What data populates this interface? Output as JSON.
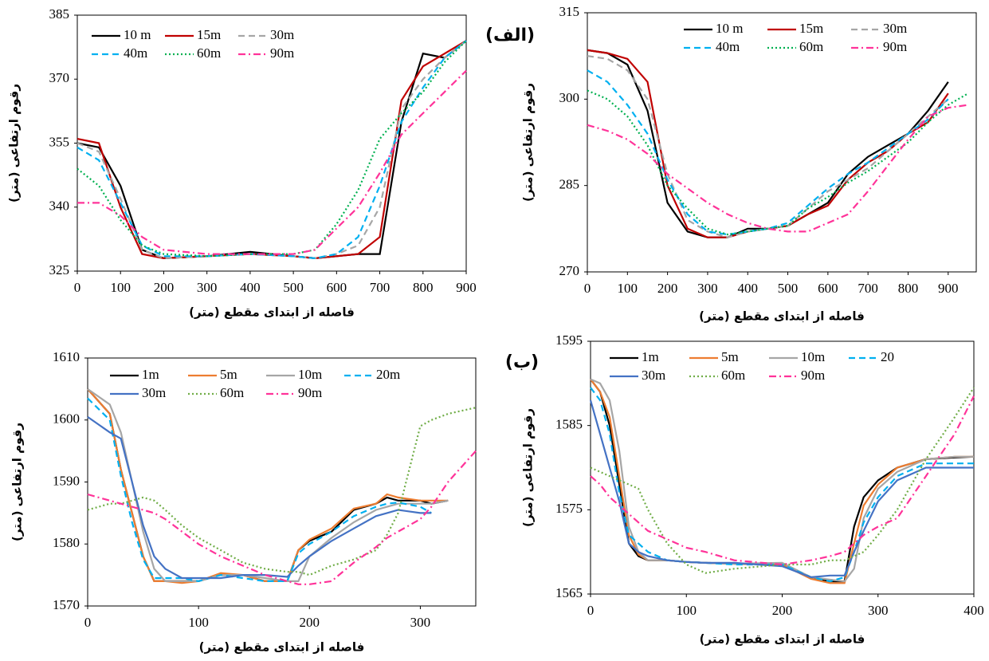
{
  "chart_data": [
    {
      "type": "line",
      "annotation": "(الف)",
      "x_label": "فاصله از ابتدای مقطع (متر)",
      "y_label": "رقوم ارتفاعی (متر)",
      "xlim": [
        0,
        900
      ],
      "xticks": [
        0,
        100,
        200,
        300,
        400,
        500,
        600,
        700,
        800,
        900
      ],
      "ylim": [
        325,
        385
      ],
      "yticks": [
        325,
        340,
        355,
        370,
        385
      ],
      "x": [
        0,
        50,
        100,
        150,
        200,
        300,
        400,
        500,
        550,
        600,
        650,
        700,
        750,
        800,
        850,
        900
      ],
      "series": [
        {
          "name": "10 m",
          "color": "#000000",
          "dash": "solid",
          "values": [
            355,
            354,
            345,
            330,
            328,
            328.5,
            329.5,
            328.5,
            328,
            328.5,
            329,
            329,
            360,
            376,
            375,
            379
          ]
        },
        {
          "name": "15m",
          "color": "#c00000",
          "dash": "solid",
          "values": [
            356,
            355,
            340,
            329,
            328,
            328.5,
            329,
            328.5,
            328,
            328.5,
            329,
            333,
            365,
            373,
            376,
            379
          ]
        },
        {
          "name": "30m",
          "color": "#a6a6a6",
          "dash": "dashed",
          "values": [
            355,
            353,
            342,
            330,
            328,
            328.5,
            329,
            328.5,
            328,
            329,
            331,
            340,
            363,
            370,
            375,
            379
          ]
        },
        {
          "name": "40m",
          "color": "#00b0f0",
          "dash": "dashed",
          "values": [
            354,
            351,
            341,
            331,
            328.5,
            328.5,
            329,
            328.5,
            328,
            329,
            333,
            345,
            360,
            368,
            375,
            379
          ]
        },
        {
          "name": "60m",
          "color": "#00b050",
          "dash": "dotted",
          "values": [
            349,
            345,
            337,
            331,
            329,
            328.5,
            329,
            329,
            330,
            336,
            344,
            356,
            362,
            367,
            374,
            379
          ]
        },
        {
          "name": "90m",
          "color": "#ff3399",
          "dash": "dashdot",
          "values": [
            341,
            341,
            338,
            333,
            330,
            329,
            329,
            329,
            330,
            335,
            340,
            348,
            357,
            362,
            367,
            372
          ]
        }
      ]
    },
    {
      "type": "line",
      "x_label": "فاصله از ابتدای مقطع (متر)",
      "y_label": "رقوم ارتفاعی (متر)",
      "xlim": [
        0,
        970
      ],
      "xticks": [
        0,
        100,
        200,
        300,
        400,
        500,
        600,
        700,
        800,
        900
      ],
      "ylim": [
        270,
        315
      ],
      "yticks": [
        270,
        285,
        300,
        315
      ],
      "x": [
        0,
        50,
        100,
        150,
        200,
        250,
        300,
        350,
        400,
        450,
        500,
        550,
        600,
        650,
        700,
        750,
        800,
        850,
        900,
        950
      ],
      "series": [
        {
          "name": "10 m",
          "color": "#000000",
          "dash": "solid",
          "values": [
            308.5,
            308,
            306,
            298,
            282,
            277,
            276,
            276,
            277.5,
            277.5,
            278,
            280,
            282,
            287,
            290,
            292,
            294,
            298,
            303,
            null
          ]
        },
        {
          "name": "15m",
          "color": "#c00000",
          "dash": "solid",
          "values": [
            308.5,
            308,
            307,
            303,
            285,
            277.5,
            276,
            276,
            277,
            277.5,
            278,
            280,
            281.5,
            286,
            289,
            291,
            294,
            296,
            301,
            null
          ]
        },
        {
          "name": "30m",
          "color": "#a6a6a6",
          "dash": "dashed",
          "values": [
            307.5,
            307,
            305,
            300,
            287,
            279,
            277,
            276,
            277,
            277.5,
            278,
            281,
            284,
            286,
            288,
            291,
            294,
            297,
            300,
            null
          ]
        },
        {
          "name": "40m",
          "color": "#00b0f0",
          "dash": "dashed",
          "values": [
            305,
            303,
            299,
            294,
            286,
            280,
            277,
            276.5,
            277,
            277.5,
            278.5,
            281.5,
            284.5,
            287,
            289,
            291.5,
            294,
            296.5,
            300,
            null
          ]
        },
        {
          "name": "60m",
          "color": "#00b050",
          "dash": "dotted",
          "values": [
            301.5,
            300,
            297,
            292,
            285,
            281,
            277.5,
            276.5,
            277,
            277.5,
            278,
            281,
            283,
            285.5,
            287.5,
            290,
            292.5,
            296,
            299,
            301
          ]
        },
        {
          "name": "90m",
          "color": "#ff3399",
          "dash": "dashdot",
          "values": [
            295.5,
            294.5,
            293,
            290.5,
            287,
            284.5,
            282,
            280,
            278.5,
            277.5,
            277,
            277,
            278.5,
            280,
            284,
            288.5,
            293,
            297,
            298.5,
            299
          ]
        }
      ]
    },
    {
      "type": "line",
      "x_label": "فاصله از ابتدای مقطع (متر)",
      "y_label": "رقوم ارتفاعی (متر)",
      "xlim": [
        0,
        350
      ],
      "xticks": [
        0,
        100,
        200,
        300
      ],
      "ylim": [
        1570,
        1610
      ],
      "yticks": [
        1570,
        1580,
        1590,
        1600,
        1610
      ],
      "x": [
        0,
        20,
        30,
        40,
        50,
        60,
        70,
        85,
        100,
        120,
        140,
        160,
        180,
        190,
        200,
        220,
        240,
        260,
        270,
        280,
        300,
        310,
        325,
        350
      ],
      "series": [
        {
          "name": "1m",
          "color": "#000000",
          "dash": "solid",
          "values": [
            1605,
            1601,
            1592,
            1585,
            1578,
            1574,
            1574,
            1574,
            1574,
            1575,
            1575,
            1574,
            1574,
            1579,
            1580.5,
            1582,
            1585.5,
            1586.5,
            1587.5,
            1587,
            1587,
            1586.5,
            1587,
            null
          ]
        },
        {
          "name": "5m",
          "color": "#ed7d31",
          "dash": "solid",
          "values": [
            1605,
            1601,
            1592,
            1585,
            1578,
            1574,
            1574,
            1573.7,
            1574,
            1575.3,
            1575,
            1574,
            1574,
            1579,
            1580.7,
            1582.5,
            1585.7,
            1586.5,
            1588,
            1587.5,
            1587,
            1587,
            1587,
            null
          ]
        },
        {
          "name": "10m",
          "color": "#a6a6a6",
          "dash": "solid",
          "values": [
            1605,
            1602.5,
            1598,
            1590,
            1582,
            1576,
            1574,
            1574,
            1574,
            1575,
            1575,
            1574.5,
            1574,
            1574,
            1578,
            1581,
            1583.5,
            1585.5,
            1586,
            1586.5,
            1586.5,
            1586.5,
            1587,
            null
          ]
        },
        {
          "name": "20m",
          "color": "#00b0f0",
          "dash": "dashed",
          "values": [
            1603.5,
            1600,
            1591,
            1583.5,
            1577.5,
            1574.5,
            1574.5,
            1574.5,
            1574,
            1575,
            1574.5,
            1574,
            1574,
            1578.5,
            1580,
            1582,
            1584.5,
            1586,
            1586.5,
            1586.7,
            1586,
            1585,
            null,
            null
          ]
        },
        {
          "name": "30m",
          "color": "#4472c4",
          "dash": "solid",
          "values": [
            1600.5,
            1598,
            1597,
            1590,
            1583,
            1578,
            1576,
            1574.5,
            1574.5,
            1574.5,
            1575,
            1575,
            1574.7,
            1576.5,
            1578,
            1580.5,
            1582.5,
            1584.5,
            1585,
            1585.5,
            1585,
            1585,
            null,
            null
          ]
        },
        {
          "name": "60m",
          "color": "#70ad47",
          "dash": "dotted",
          "values": [
            1585.5,
            1586.5,
            1586.5,
            1587,
            1587.5,
            1587,
            1585.5,
            1583,
            1581,
            1579,
            1577,
            1576,
            1575.5,
            1575.5,
            1575,
            1576.5,
            1577.5,
            1579,
            1581.5,
            1585,
            1599,
            1600,
            1601,
            1602
          ]
        },
        {
          "name": "90m",
          "color": "#ff3399",
          "dash": "dashdot",
          "values": [
            1588,
            1587,
            1586.5,
            1586,
            1585.5,
            1585,
            1584,
            1582,
            1580,
            1578,
            1576.5,
            1575,
            1574,
            1573.5,
            1573.5,
            1574,
            1577,
            1579.5,
            1581,
            1582,
            1584,
            1586,
            1590,
            1595
          ]
        }
      ]
    },
    {
      "type": "line",
      "annotation": "(ب)",
      "x_label": "فاصله از ابتدای مقطع (متر)",
      "y_label": "رقوم ارتفاعی (متر)",
      "xlim": [
        0,
        400
      ],
      "xticks": [
        0,
        100,
        200,
        300,
        400
      ],
      "ylim": [
        1565,
        1595
      ],
      "yticks": [
        1565,
        1575,
        1585,
        1595
      ],
      "x": [
        0,
        10,
        20,
        30,
        40,
        50,
        60,
        80,
        100,
        120,
        150,
        200,
        230,
        250,
        265,
        275,
        285,
        300,
        320,
        350,
        380,
        400
      ],
      "series": [
        {
          "name": "1m",
          "color": "#000000",
          "dash": "solid",
          "values": [
            1590.5,
            1589,
            1585,
            1578,
            1571,
            1569.5,
            1569,
            1569,
            1568.8,
            1568.7,
            1568.6,
            1568.5,
            1567,
            1566.5,
            1566.5,
            1573,
            1576.5,
            1578.5,
            1580,
            1581,
            1581.2,
            1581.3
          ]
        },
        {
          "name": "5m",
          "color": "#ed7d31",
          "dash": "solid",
          "values": [
            1590.5,
            1589,
            1586,
            1579,
            1572,
            1569.7,
            1569,
            1569,
            1568.8,
            1568.7,
            1568.6,
            1568.5,
            1566.8,
            1566.3,
            1566.3,
            1571,
            1575.5,
            1578,
            1580,
            1581,
            1581.3,
            1581.3
          ]
        },
        {
          "name": "10m",
          "color": "#a6a6a6",
          "dash": "solid",
          "values": [
            1590.5,
            1590,
            1588,
            1582,
            1573,
            1570,
            1569,
            1569,
            1568.8,
            1568.7,
            1568.6,
            1568.7,
            1567,
            1566.7,
            1566.5,
            1568,
            1574,
            1577.5,
            1579.5,
            1581,
            1581.3,
            1581.3
          ]
        },
        {
          "name": "20",
          "color": "#00b0f0",
          "dash": "dashed",
          "values": [
            1589.5,
            1588,
            1584,
            1577,
            1572,
            1571,
            1570,
            1569,
            1568.8,
            1568.7,
            1568.5,
            1568.5,
            1567,
            1566.5,
            1567,
            1570,
            1573.5,
            1576.5,
            1579,
            1580.5,
            1580.5,
            1580.5
          ]
        },
        {
          "name": "30m",
          "color": "#4472c4",
          "dash": "solid",
          "values": [
            1588,
            1584,
            1580,
            1576,
            1571,
            1570,
            1569.5,
            1569,
            1568.8,
            1568.7,
            1568.7,
            1568.3,
            1567,
            1567.2,
            1567.2,
            1570,
            1572.5,
            1576,
            1578.5,
            1580,
            1580,
            1580
          ]
        },
        {
          "name": "60m",
          "color": "#70ad47",
          "dash": "dotted",
          "values": [
            1580,
            1579.5,
            1579,
            1578.5,
            1578,
            1577.5,
            1575,
            1571,
            1568.5,
            1567.5,
            1568,
            1568.5,
            1568.5,
            1569,
            1569,
            1569.5,
            1570,
            1572,
            1575,
            1581,
            1586,
            1589.5
          ]
        },
        {
          "name": "90m",
          "color": "#ff3399",
          "dash": "dashdot",
          "values": [
            1579,
            1578,
            1576.5,
            1575.5,
            1574.5,
            1573.5,
            1572.5,
            1571.5,
            1570.5,
            1570,
            1569,
            1568.5,
            1569,
            1569.5,
            1570,
            1571,
            1572,
            1573,
            1574,
            1579,
            1584,
            1588.5
          ]
        }
      ]
    }
  ]
}
